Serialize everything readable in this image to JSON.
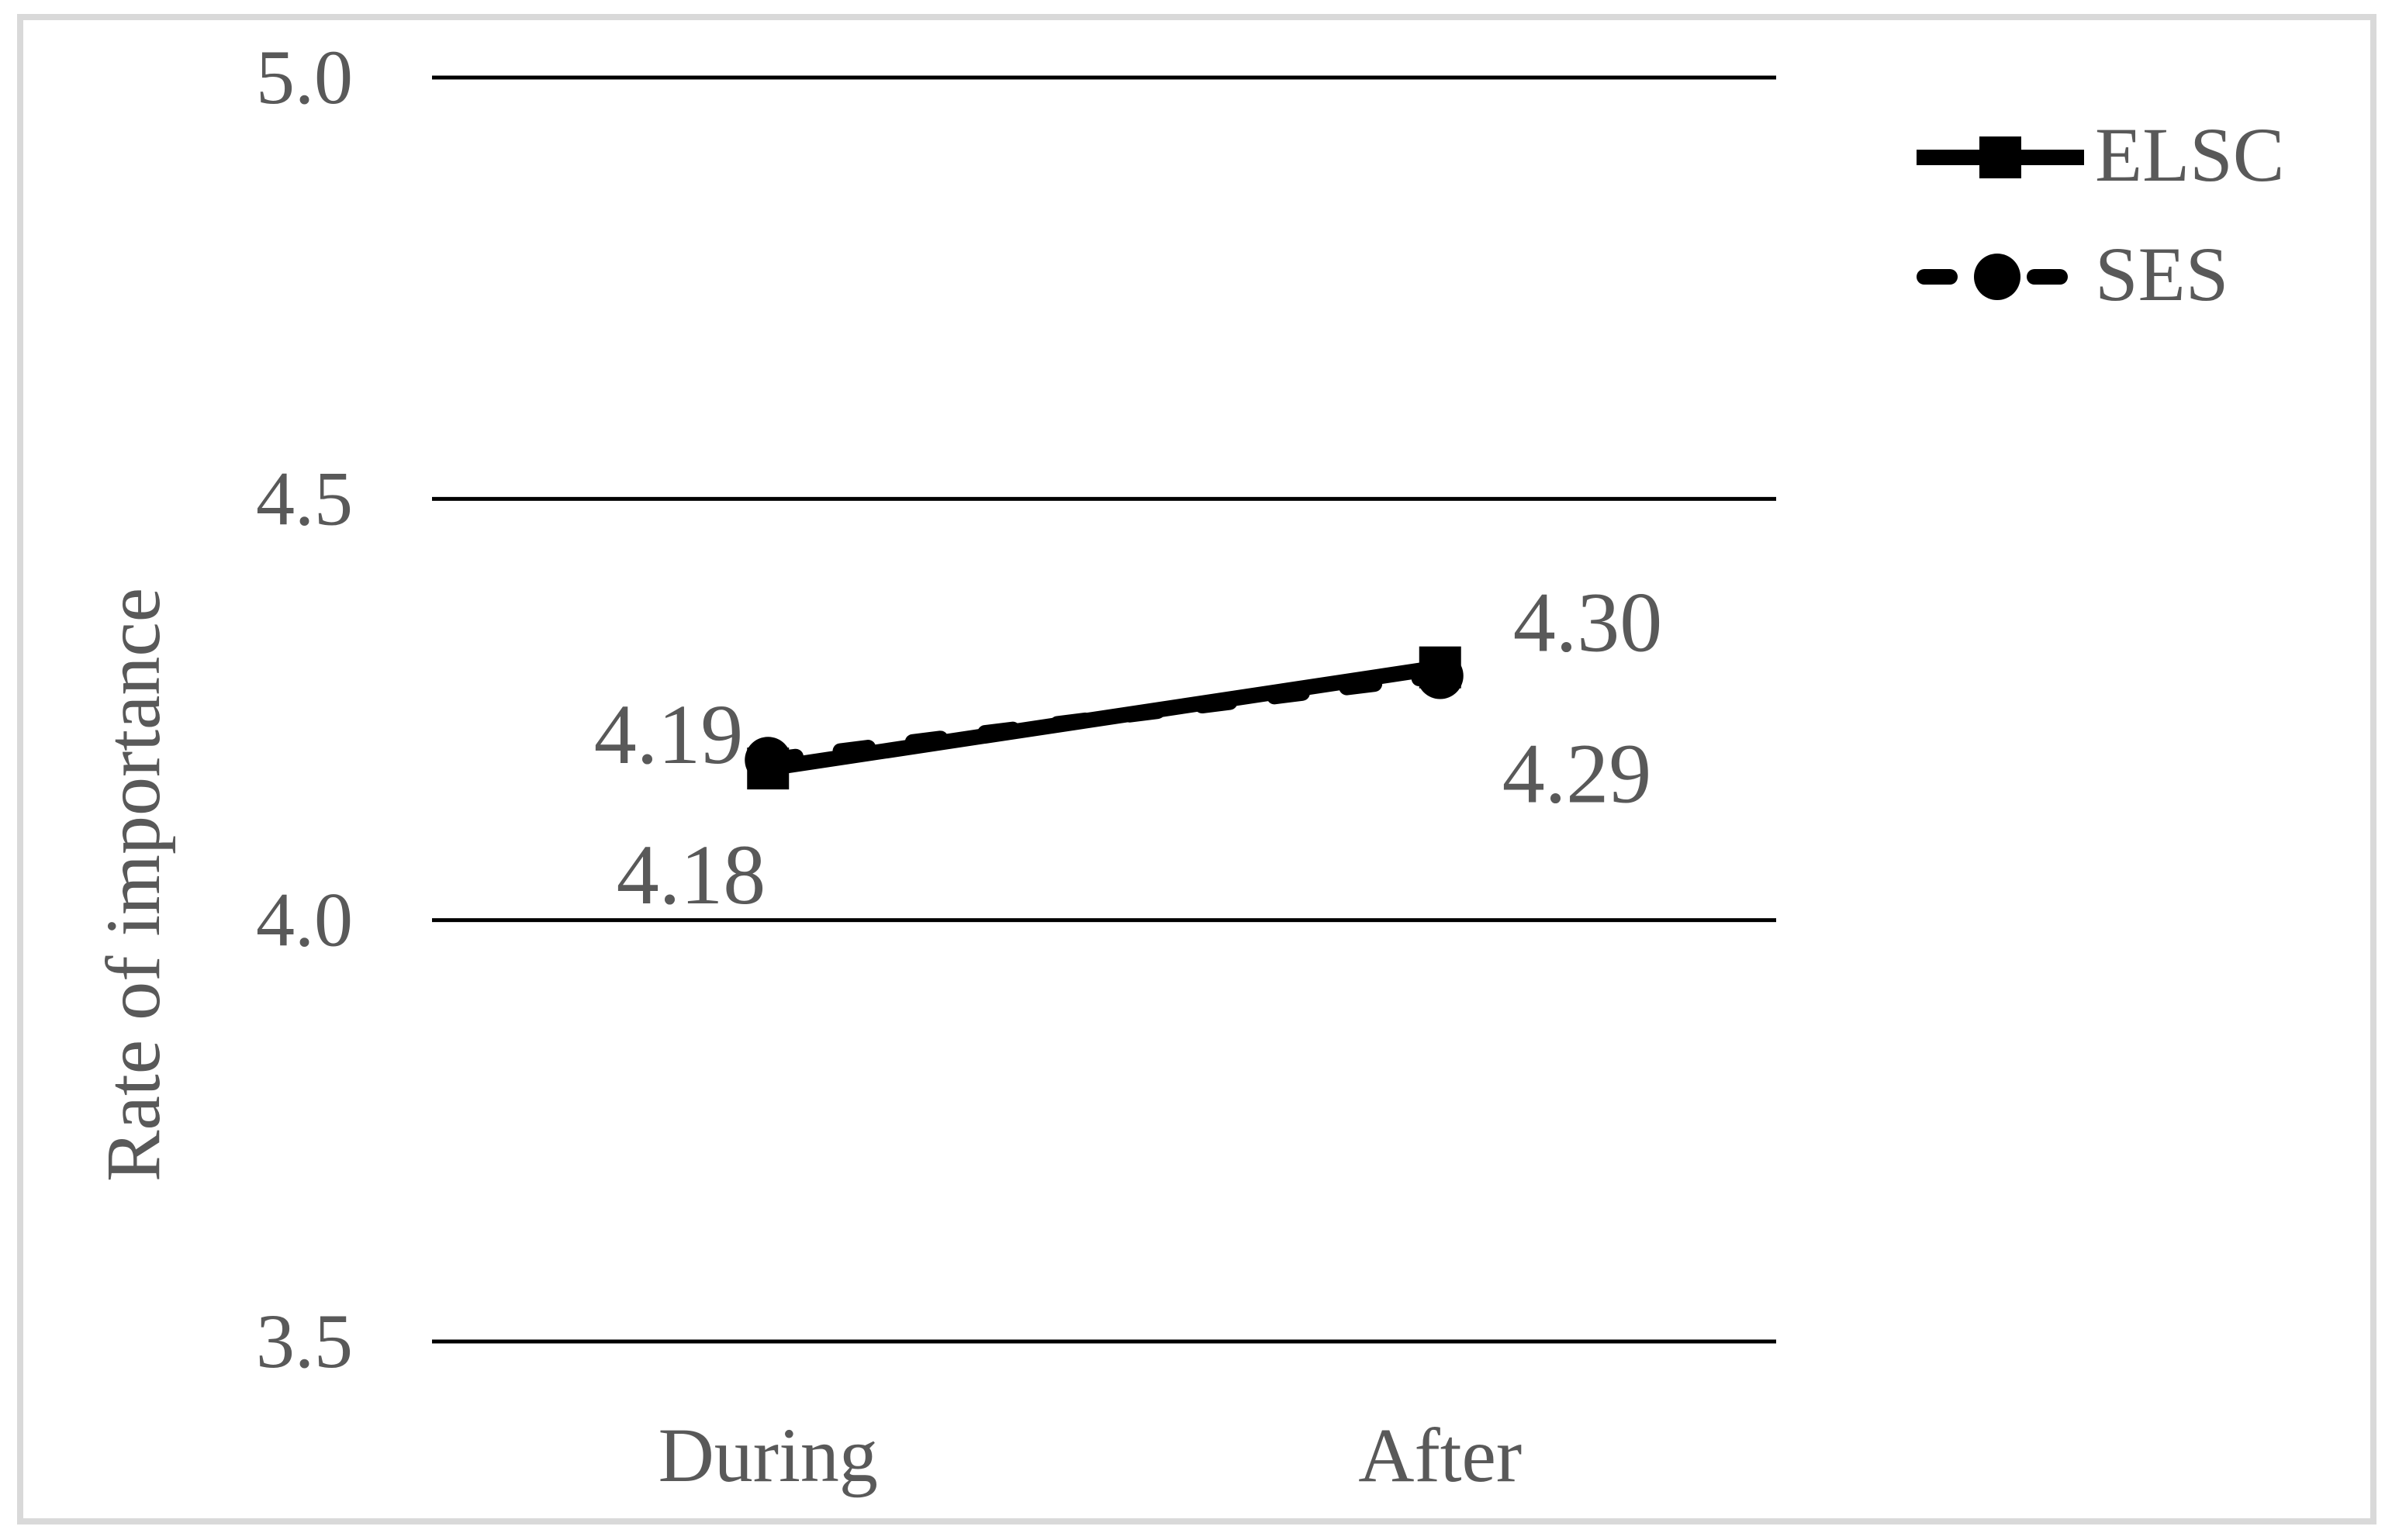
{
  "chart_data": {
    "type": "line",
    "title": "",
    "categories": [
      "During",
      "After"
    ],
    "series": [
      {
        "name": "ELSC",
        "values": [
          4.18,
          4.3
        ],
        "labels": [
          "4.18",
          "4.30"
        ],
        "marker": "square",
        "line_style": "solid",
        "color": "#000000"
      },
      {
        "name": "SES",
        "values": [
          4.19,
          4.29
        ],
        "labels": [
          "4.19",
          "4.29"
        ],
        "marker": "circle",
        "line_style": "dashed",
        "color": "#000000"
      }
    ],
    "xlabel": "",
    "ylabel": "Rate of importance",
    "ylim": [
      3.5,
      5.0
    ],
    "yticks": [
      5.0,
      4.5,
      4.0,
      3.5
    ],
    "ytick_labels": [
      "5.0",
      "4.5",
      "4.0",
      "3.5"
    ],
    "grid": "horizontal",
    "legend_position": "top-right",
    "colors": {
      "line": "#000000",
      "text": "#595959",
      "figure_border": "#d9d9d9",
      "background": "#ffffff"
    }
  }
}
